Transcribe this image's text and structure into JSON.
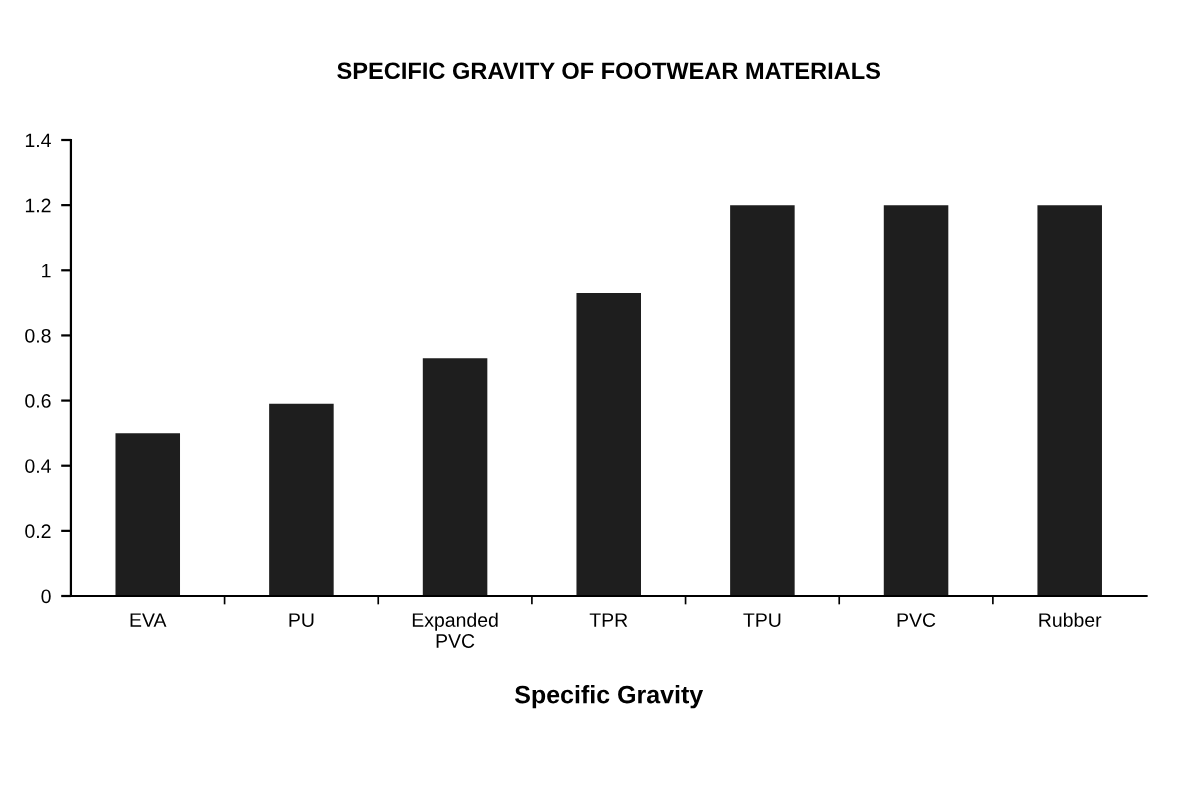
{
  "chart_data": {
    "type": "bar",
    "title": "SPECIFIC GRAVITY OF FOOTWEAR MATERIALS",
    "xlabel": "Specific Gravity",
    "categories": [
      "EVA",
      "PU",
      "Expanded\nPVC",
      "TPR",
      "TPU",
      "PVC",
      "Rubber"
    ],
    "values": [
      0.5,
      0.59,
      0.73,
      0.93,
      1.2,
      1.2,
      1.2
    ],
    "color": "#1e1e1e",
    "ylim": [
      0,
      1.4
    ],
    "yticks": [
      0,
      0.2,
      0.4,
      0.6,
      0.8,
      1,
      1.2,
      1.4
    ],
    "grid": false,
    "legend": false
  }
}
